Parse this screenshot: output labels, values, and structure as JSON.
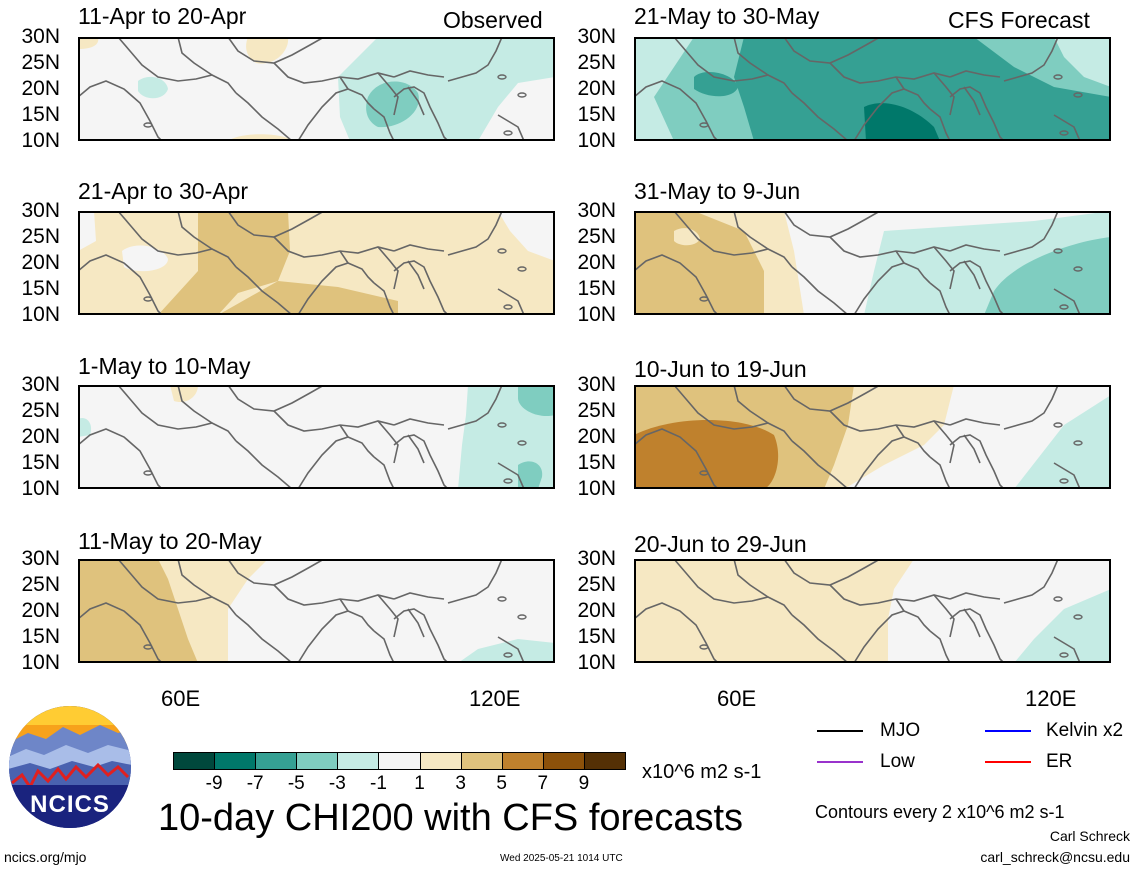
{
  "figure": {
    "title": "10-day CHI200 with CFS forecasts",
    "left_header_tag": "Observed",
    "right_header_tag": "CFS Forecast",
    "footer_left": "ncics.org/mjo",
    "footer_center": "Wed 2025-05-21 1014 UTC",
    "footer_right_name": "Carl Schreck",
    "footer_right_email": "carl_schreck@ncsu.edu",
    "contour_note": "Contours every 2 x10^6 m2 s-1",
    "logo_text": "NCICS"
  },
  "colorbar": {
    "unit": "x10^6 m2 s-1",
    "tick_labels": [
      "-9",
      "-7",
      "-5",
      "-3",
      "-1",
      "1",
      "3",
      "5",
      "7",
      "9"
    ],
    "colors": [
      "#00483c",
      "#00786a",
      "#35a093",
      "#7fcdc0",
      "#c5ebe4",
      "#f5f5f5",
      "#f6e8c3",
      "#dfc27d",
      "#bf812d",
      "#8c510a",
      "#543005"
    ]
  },
  "legend": [
    {
      "label": "MJO",
      "color": "#000000"
    },
    {
      "label": "Kelvin x2",
      "color": "#0000ff"
    },
    {
      "label": "Low",
      "color": "#9932cc"
    },
    {
      "label": "ER",
      "color": "#ff0000"
    }
  ],
  "chart_data": {
    "type": "heatmap",
    "variable": "CHI200",
    "y_tick_labels": [
      "30N",
      "25N",
      "20N",
      "15N",
      "10N"
    ],
    "x_tick_labels": [
      "60E",
      "120E"
    ],
    "panels": [
      {
        "title": "11-Apr to 20-Apr",
        "source": "Observed"
      },
      {
        "title": "21-Apr to 30-Apr",
        "source": "Observed"
      },
      {
        "title": "1-May to 10-May",
        "source": "Observed"
      },
      {
        "title": "11-May to 20-May",
        "source": "Observed"
      },
      {
        "title": "21-May to 30-May",
        "source": "CFS Forecast"
      },
      {
        "title": "31-May to 9-Jun",
        "source": "CFS Forecast"
      },
      {
        "title": "10-Jun to 19-Jun",
        "source": "CFS Forecast"
      },
      {
        "title": "20-Jun to 29-Jun",
        "source": "CFS Forecast"
      }
    ]
  }
}
